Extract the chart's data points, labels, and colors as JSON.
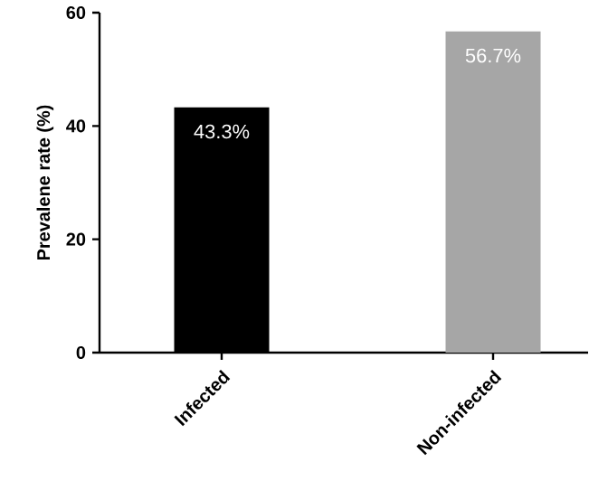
{
  "chart_data": {
    "type": "bar",
    "ylabel": "Prevalene rate (%)",
    "categories": [
      "Infected",
      "Non-infected"
    ],
    "values": [
      43.3,
      56.7
    ],
    "colors": [
      "#000000",
      "#a6a6a6"
    ],
    "value_labels": [
      "43.3%",
      "56.7%"
    ],
    "ylim": [
      0,
      60
    ],
    "yticks": [
      0,
      20,
      40,
      60
    ]
  }
}
